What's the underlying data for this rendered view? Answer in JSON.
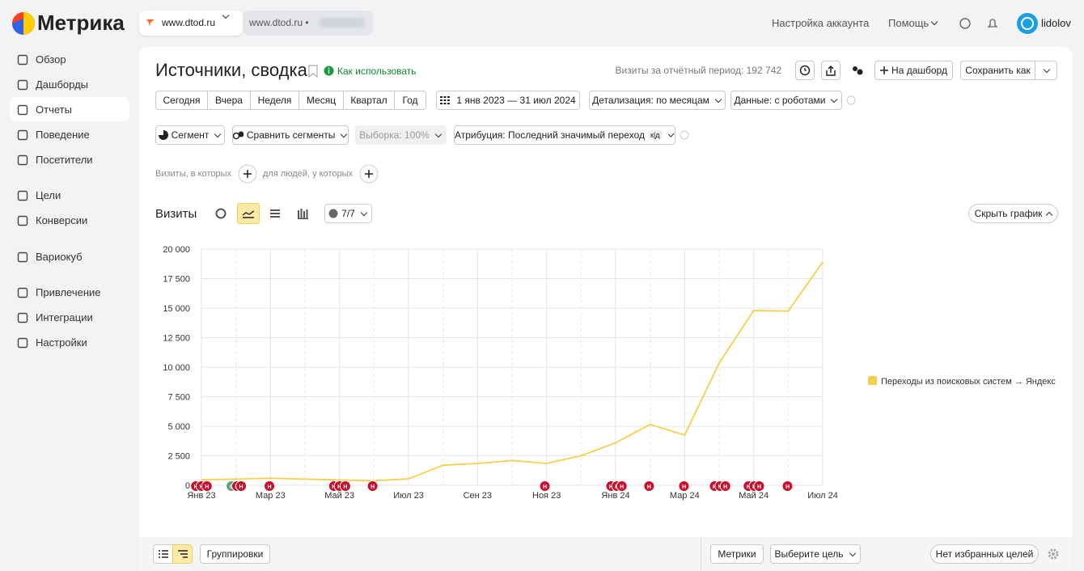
{
  "header": {
    "logo": "Метрика",
    "counter": "www.dtod.ru",
    "counter2": "www.dtod.ru •",
    "account_settings": "Настройка аккаунта",
    "help": "Помощь",
    "user": "lidolov"
  },
  "sidebar": [
    "Обзор",
    "Дашборды",
    "Отчеты",
    "Поведение",
    "Посетители",
    "Цели",
    "Конверсии",
    "Вариокуб",
    "Привлечение",
    "Интеграции",
    "Настройки"
  ],
  "report": {
    "title": "Источники, сводка",
    "how_to": "Как использовать",
    "visits_total": "Визиты за отчётный период: 192 742",
    "add_dashboard": "На дашборд",
    "save_as": "Сохранить как",
    "periods": [
      "Сегодня",
      "Вчера",
      "Неделя",
      "Месяц",
      "Квартал",
      "Год"
    ],
    "date_range": "1 янв 2023 — 31 июл 2024",
    "detail": "Детализация: по месяцам",
    "data": "Данные: с роботами",
    "segment": "Сегмент",
    "compare": "Сравнить сегменты",
    "sample": "Выборка: 100%",
    "attribution": "Атрибуция: Последний значимый переход",
    "attribution_badge": "к|д",
    "filter_visits": "Визиты, в которых",
    "filter_people": "для людей, у которых",
    "chart_label": "Визиты",
    "series_count": "7/7",
    "hide_chart": "Скрыть график"
  },
  "table_toolbar": {
    "groupings": "Группировки",
    "metrics": "Метрики",
    "goal": "Выберите цель",
    "favorites": "Нет избранных целей"
  },
  "chart_data": {
    "type": "line",
    "x": [
      "Янв 23",
      null,
      "Мар 23",
      null,
      "Май 23",
      null,
      "Июл 23",
      null,
      "Сен 23",
      null,
      "Ноя 23",
      null,
      "Янв 24",
      null,
      "Мар 24",
      null,
      "Май 24",
      null,
      "Июл 24"
    ],
    "series": [
      {
        "name": "Переходы из поисковых систем → Яндекс",
        "color": "#f7cf4a",
        "values": [
          480,
          520,
          600,
          520,
          450,
          380,
          550,
          1700,
          1850,
          2100,
          1850,
          2500,
          3600,
          5150,
          4250,
          10350,
          14800,
          14750,
          18900
        ]
      }
    ],
    "ylim": [
      0,
      20000
    ],
    "yticks": [
      0,
      {
        "value": 2500,
        "label": "2 500"
      },
      {
        "value": 5000,
        "label": "5 000"
      },
      {
        "value": 7500,
        "label": "7 500"
      },
      {
        "value": 10000,
        "label": "10 000"
      },
      {
        "value": 12500,
        "label": "12 500"
      },
      {
        "value": 15000,
        "label": "15 000"
      },
      {
        "value": 17500,
        "label": "17 500"
      },
      {
        "value": 20000,
        "label": "20 000"
      }
    ],
    "grid": true,
    "legend": "right",
    "annotations": [
      {
        "label": "Н",
        "x": -0.16,
        "color": "#c8102e"
      },
      {
        "label": "Н",
        "x": 0,
        "color": "#c8102e"
      },
      {
        "label": "Н",
        "x": 0.16,
        "color": "#c8102e"
      },
      {
        "label": "С",
        "x": 0.87,
        "color": "#5a9e7a"
      },
      {
        "label": "Н",
        "x": 1.03,
        "color": "#c8102e"
      },
      {
        "label": "Н",
        "x": 1.15,
        "color": "#c8102e"
      },
      {
        "label": "Н",
        "x": 1.97,
        "color": "#c8102e"
      },
      {
        "label": "Н",
        "x": 3.84,
        "color": "#c8102e"
      },
      {
        "label": "Н",
        "x": 4,
        "color": "#c8102e"
      },
      {
        "label": "Н",
        "x": 4.17,
        "color": "#c8102e"
      },
      {
        "label": "Н",
        "x": 4.96,
        "color": "#c8102e"
      },
      {
        "label": "Н",
        "x": 9.95,
        "color": "#c8102e"
      },
      {
        "label": "Н",
        "x": 11.87,
        "color": "#c8102e"
      },
      {
        "label": "Н",
        "x": 12.04,
        "color": "#c8102e"
      },
      {
        "label": "Н",
        "x": 12.18,
        "color": "#c8102e"
      },
      {
        "label": "Н",
        "x": 12.97,
        "color": "#c8102e"
      },
      {
        "label": "Н",
        "x": 13.98,
        "color": "#c8102e"
      },
      {
        "label": "Н",
        "x": 14.87,
        "color": "#c8102e"
      },
      {
        "label": "Н",
        "x": 15.03,
        "color": "#c8102e"
      },
      {
        "label": "Н",
        "x": 15.18,
        "color": "#c8102e"
      },
      {
        "label": "Н",
        "x": 15.85,
        "color": "#c8102e"
      },
      {
        "label": "Н",
        "x": 16.02,
        "color": "#c8102e"
      },
      {
        "label": "Н",
        "x": 16.16,
        "color": "#c8102e"
      },
      {
        "label": "Н",
        "x": 16.98,
        "color": "#c8102e"
      }
    ]
  }
}
